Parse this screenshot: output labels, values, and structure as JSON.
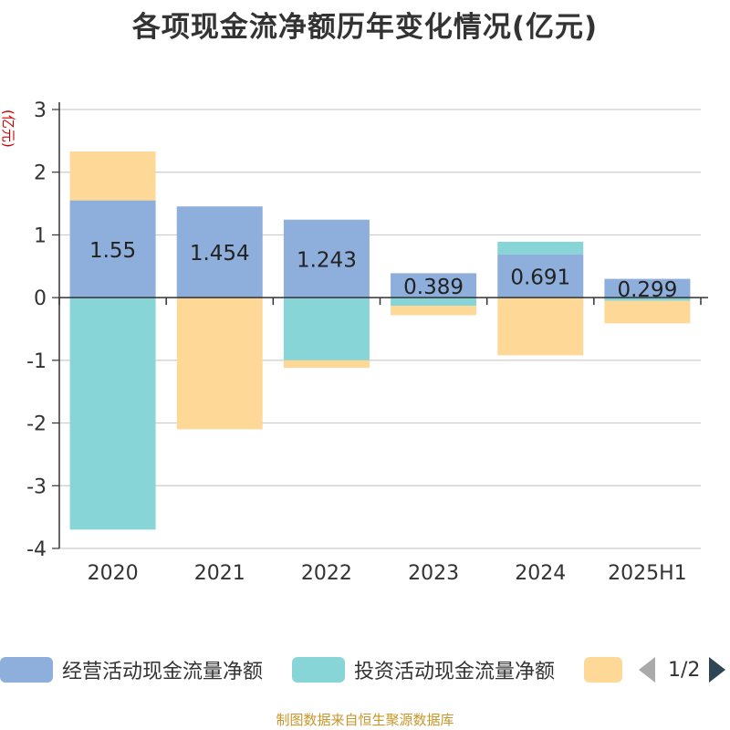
{
  "chart_data": {
    "type": "bar",
    "stacked": true,
    "title": "各项现金流净额历年变化情况(亿元)",
    "ylabel": "(亿元)",
    "xlabel": "",
    "categories": [
      "2020",
      "2021",
      "2022",
      "2023",
      "2024",
      "2025H1"
    ],
    "ylim": [
      -4,
      3
    ],
    "yticks": [
      3,
      2,
      1,
      0,
      -1,
      -2,
      -3,
      -4
    ],
    "grid": true,
    "legend_position": "bottom",
    "series": [
      {
        "name": "经营活动现金流量净额",
        "color": "#8eaedb",
        "values": [
          1.55,
          1.454,
          1.243,
          0.389,
          0.691,
          0.299
        ],
        "labels": [
          "1.55",
          "1.454",
          "1.243",
          "0.389",
          "0.691",
          "0.299"
        ]
      },
      {
        "name": "投资活动现金流量净额",
        "color": "#88d5d8",
        "values": [
          -3.7,
          0,
          -1.0,
          -0.13,
          0.2,
          -0.05
        ]
      },
      {
        "name": "",
        "color": "#fdd897",
        "values": [
          0.78,
          -2.1,
          -0.12,
          -0.15,
          -0.92,
          -0.36
        ]
      }
    ]
  },
  "legend": {
    "items": [
      "经营活动现金流量净额",
      "投资活动现金流量净额",
      ""
    ],
    "page": "1/2"
  },
  "footer": {
    "source": "制图数据来自恒生聚源数据库"
  }
}
